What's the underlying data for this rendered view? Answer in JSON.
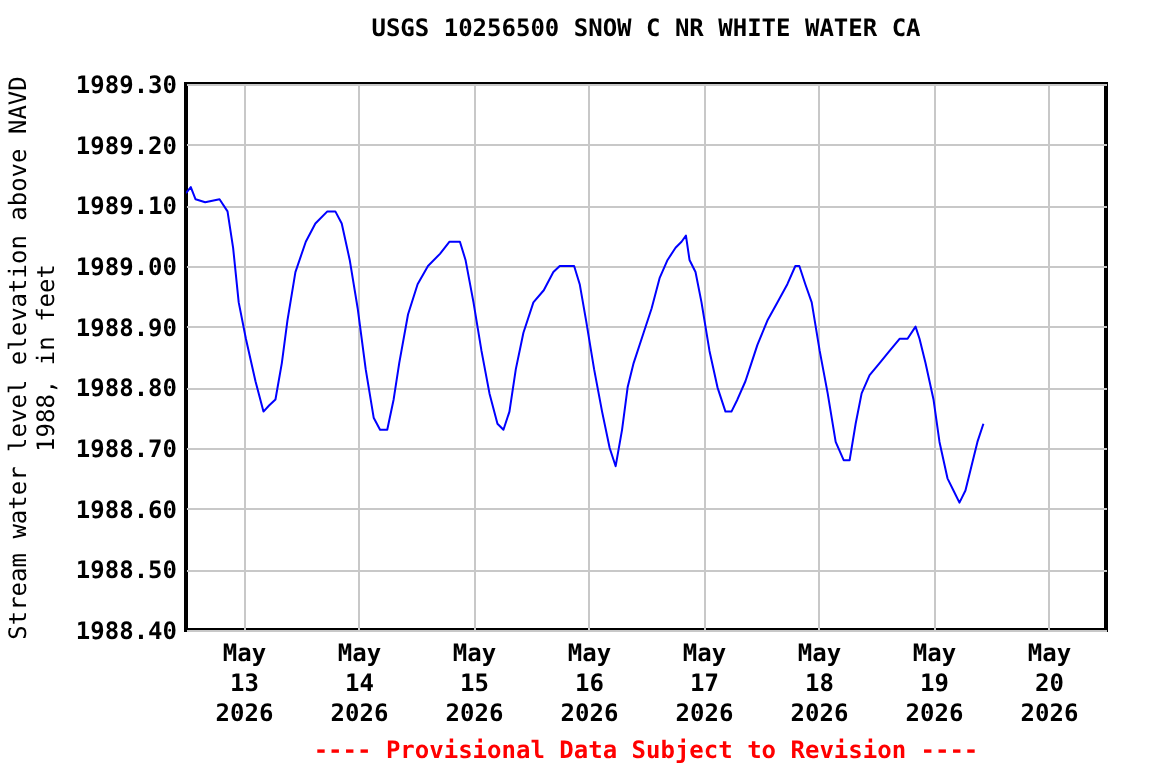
{
  "chart_data": {
    "type": "line",
    "title": "USGS 10256500 SNOW C NR WHITE WATER CA",
    "ylabel": "Stream water level elevation above NAVD 1988, in feet",
    "annotations": [
      "---- Provisional Data Subject to Revision ----"
    ],
    "xlim": [
      "2026-05-12T12:00",
      "2026-05-20T12:00"
    ],
    "xticks": [
      {
        "value": "2026-05-13",
        "label": "May 13 2026"
      },
      {
        "value": "2026-05-14",
        "label": "May 14 2026"
      },
      {
        "value": "2026-05-15",
        "label": "May 15 2026"
      },
      {
        "value": "2026-05-16",
        "label": "May 16 2026"
      },
      {
        "value": "2026-05-17",
        "label": "May 17 2026"
      },
      {
        "value": "2026-05-18",
        "label": "May 18 2026"
      },
      {
        "value": "2026-05-19",
        "label": "May 19 2026"
      },
      {
        "value": "2026-05-20",
        "label": "May 20 2026"
      }
    ],
    "ylim": [
      1988.4,
      1989.3
    ],
    "yticks": [
      {
        "value": 1988.4,
        "label": "1988.40"
      },
      {
        "value": 1988.5,
        "label": "1988.50"
      },
      {
        "value": 1988.6,
        "label": "1988.60"
      },
      {
        "value": 1988.7,
        "label": "1988.70"
      },
      {
        "value": 1988.8,
        "label": "1988.80"
      },
      {
        "value": 1988.9,
        "label": "1988.90"
      },
      {
        "value": 1989.0,
        "label": "1989.00"
      },
      {
        "value": 1989.1,
        "label": "1989.10"
      },
      {
        "value": 1989.2,
        "label": "1989.20"
      },
      {
        "value": 1989.3,
        "label": "1989.30"
      }
    ],
    "grid": true,
    "series": [
      {
        "color": "#0000ff",
        "x": [
          "2026-05-12T12:00",
          "2026-05-12T13:00",
          "2026-05-12T14:00",
          "2026-05-12T16:00",
          "2026-05-12T19:00",
          "2026-05-12T20:40",
          "2026-05-12T21:50",
          "2026-05-12T23:00",
          "2026-05-13T00:30",
          "2026-05-13T02:30",
          "2026-05-13T04:10",
          "2026-05-13T05:20",
          "2026-05-13T06:40",
          "2026-05-13T08:00",
          "2026-05-13T09:10",
          "2026-05-13T10:50",
          "2026-05-13T13:00",
          "2026-05-13T15:00",
          "2026-05-13T17:30",
          "2026-05-13T19:10",
          "2026-05-13T20:30",
          "2026-05-13T22:10",
          "2026-05-13T23:50",
          "2026-05-14T01:30",
          "2026-05-14T03:10",
          "2026-05-14T04:30",
          "2026-05-14T06:00",
          "2026-05-14T07:20",
          "2026-05-14T08:30",
          "2026-05-14T10:20",
          "2026-05-14T12:20",
          "2026-05-14T14:30",
          "2026-05-14T17:00",
          "2026-05-14T19:00",
          "2026-05-14T21:10",
          "2026-05-14T22:20",
          "2026-05-15T00:00",
          "2026-05-15T01:40",
          "2026-05-15T03:20",
          "2026-05-15T05:00",
          "2026-05-15T06:15",
          "2026-05-15T07:30",
          "2026-05-15T08:50",
          "2026-05-15T10:25",
          "2026-05-15T12:30",
          "2026-05-15T14:40",
          "2026-05-15T16:40",
          "2026-05-15T18:00",
          "2026-05-15T21:00",
          "2026-05-15T22:10",
          "2026-05-15T23:30",
          "2026-05-16T01:10",
          "2026-05-16T02:50",
          "2026-05-16T04:25",
          "2026-05-16T05:40",
          "2026-05-16T07:00",
          "2026-05-16T08:10",
          "2026-05-16T09:25",
          "2026-05-16T11:30",
          "2026-05-16T13:10",
          "2026-05-16T14:50",
          "2026-05-16T16:30",
          "2026-05-16T18:10",
          "2026-05-16T19:25",
          "2026-05-16T20:20",
          "2026-05-16T21:05",
          "2026-05-16T22:20",
          "2026-05-16T23:35",
          "2026-05-17T01:15",
          "2026-05-17T02:55",
          "2026-05-17T04:35",
          "2026-05-17T05:50",
          "2026-05-17T07:05",
          "2026-05-17T08:45",
          "2026-05-17T10:00",
          "2026-05-17T11:15",
          "2026-05-17T13:20",
          "2026-05-17T15:25",
          "2026-05-17T17:30",
          "2026-05-17T19:10",
          "2026-05-17T20:00",
          "2026-05-17T21:15",
          "2026-05-17T22:35",
          "2026-05-18T00:15",
          "2026-05-18T01:55",
          "2026-05-18T03:35",
          "2026-05-18T05:15",
          "2026-05-18T06:30",
          "2026-05-18T07:45",
          "2026-05-18T09:00",
          "2026-05-18T10:40",
          "2026-05-18T12:45",
          "2026-05-18T14:50",
          "2026-05-18T16:55",
          "2026-05-18T18:35",
          "2026-05-18T20:15",
          "2026-05-18T21:05",
          "2026-05-18T22:20",
          "2026-05-19T00:00",
          "2026-05-19T01:15",
          "2026-05-19T02:55",
          "2026-05-19T04:10",
          "2026-05-19T05:25",
          "2026-05-19T06:40",
          "2026-05-19T07:55",
          "2026-05-19T09:10",
          "2026-05-19T10:25"
        ],
        "values": [
          1989.12,
          1989.13,
          1989.11,
          1989.105,
          1989.11,
          1989.09,
          1989.03,
          1988.94,
          1988.88,
          1988.81,
          1988.76,
          1988.77,
          1988.78,
          1988.84,
          1988.91,
          1988.99,
          1989.04,
          1989.07,
          1989.09,
          1989.09,
          1989.07,
          1989.01,
          1988.93,
          1988.83,
          1988.75,
          1988.73,
          1988.73,
          1988.78,
          1988.84,
          1988.92,
          1988.97,
          1989.0,
          1989.02,
          1989.04,
          1989.04,
          1989.01,
          1988.94,
          1988.86,
          1988.79,
          1988.74,
          1988.73,
          1988.76,
          1988.83,
          1988.89,
          1988.94,
          1988.96,
          1988.99,
          1989.0,
          1989.0,
          1988.97,
          1988.91,
          1988.83,
          1988.76,
          1988.7,
          1988.67,
          1988.73,
          1988.8,
          1988.84,
          1988.89,
          1988.93,
          1988.98,
          1989.01,
          1989.03,
          1989.04,
          1989.05,
          1989.01,
          1988.99,
          1988.94,
          1988.86,
          1988.8,
          1988.76,
          1988.76,
          1988.78,
          1988.81,
          1988.84,
          1988.87,
          1988.91,
          1988.94,
          1988.97,
          1989.0,
          1989.0,
          1988.97,
          1988.94,
          1988.86,
          1988.79,
          1988.71,
          1988.68,
          1988.68,
          1988.74,
          1988.79,
          1988.82,
          1988.84,
          1988.86,
          1988.88,
          1988.88,
          1988.9,
          1988.88,
          1988.84,
          1988.78,
          1988.71,
          1988.65,
          1988.63,
          1988.61,
          1988.63,
          1988.67,
          1988.71,
          1988.74
        ]
      }
    ]
  }
}
